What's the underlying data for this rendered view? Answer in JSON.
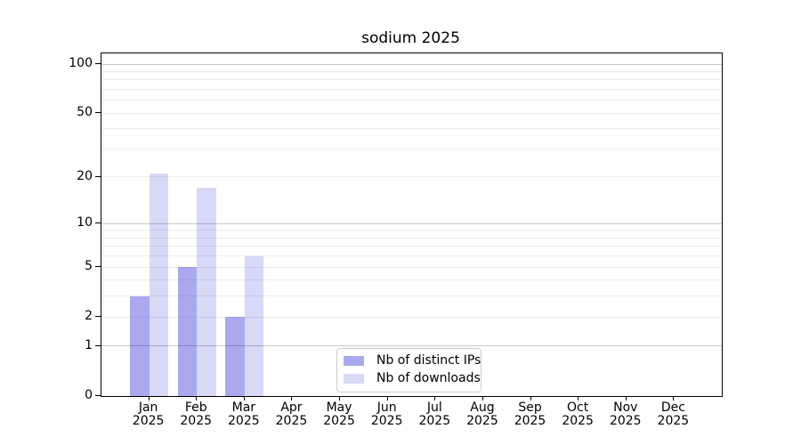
{
  "figure": {
    "background": "#ffffff"
  },
  "chart_data": {
    "type": "bar",
    "title": "sodium 2025",
    "categories": [
      "Jan",
      "Feb",
      "Mar",
      "Apr",
      "May",
      "Jun",
      "Jul",
      "Aug",
      "Sep",
      "Oct",
      "Nov",
      "Dec"
    ],
    "year_label": "2025",
    "series": [
      {
        "name": "Nb of distinct IPs",
        "color": "#a9a9f0",
        "values": [
          3,
          5,
          2,
          0,
          0,
          0,
          0,
          0,
          0,
          0,
          0,
          0
        ]
      },
      {
        "name": "Nb of downloads",
        "color": "#d8d8f7",
        "values": [
          21,
          17,
          6,
          0,
          0,
          0,
          0,
          0,
          0,
          0,
          0,
          0
        ]
      }
    ],
    "xlabel": "",
    "ylabel": "",
    "y_scale": "log1p",
    "ylim": [
      0,
      115
    ],
    "y_ticks": [
      100,
      50,
      20,
      10,
      5,
      2,
      1,
      0
    ],
    "y_major_gridlines": [
      1,
      10,
      100
    ],
    "y_minor_gridlines": [
      2,
      3,
      4,
      5,
      6,
      7,
      8,
      9,
      20,
      30,
      40,
      50,
      60,
      70,
      80,
      90
    ],
    "grid": "on",
    "legend_position": "lower center",
    "colors": {
      "spine": "#000000",
      "grid_major": "#c7c7c7",
      "grid_minor": "#ededed",
      "legend_border": "#cccccc",
      "text": "#000000"
    }
  }
}
